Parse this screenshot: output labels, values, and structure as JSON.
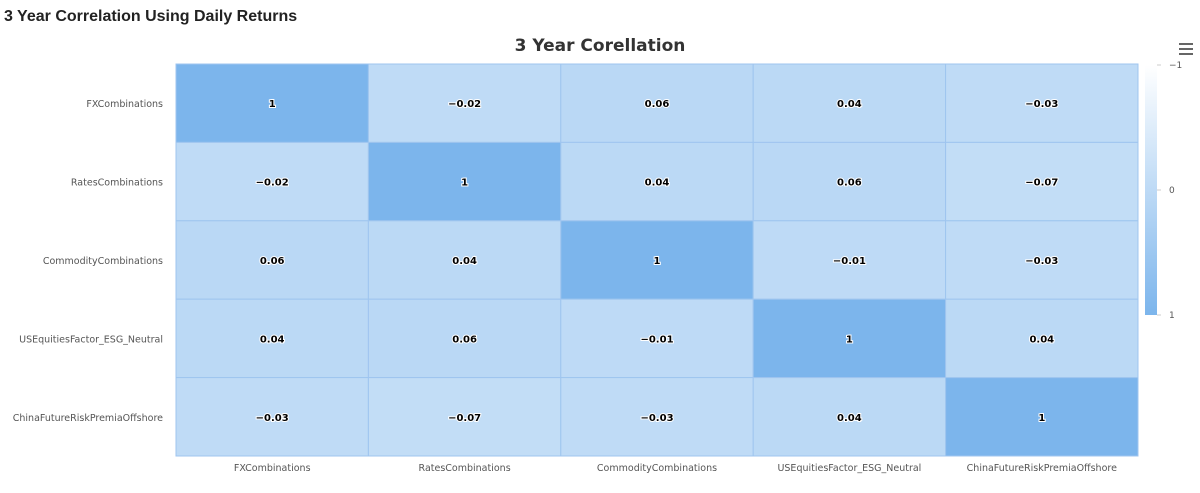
{
  "page": {
    "heading": "3 Year Correlation Using Daily Returns",
    "menu_icon": "hamburger-menu-icon"
  },
  "colors": {
    "low": "#ffffff",
    "high": "#7cb5ec",
    "grid": "#9fc5ef"
  },
  "chart_data": {
    "type": "heatmap",
    "title": "3 Year Corellation",
    "x_categories": [
      "FXCombinations",
      "RatesCombinations",
      "CommodityCombinations",
      "USEquitiesFactor_ESG_Neutral",
      "ChinaFutureRiskPremiaOffshore"
    ],
    "y_categories": [
      "FXCombinations",
      "RatesCombinations",
      "CommodityCombinations",
      "USEquitiesFactor_ESG_Neutral",
      "ChinaFutureRiskPremiaOffshore"
    ],
    "values": [
      [
        1,
        -0.02,
        0.06,
        0.04,
        -0.03
      ],
      [
        -0.02,
        1,
        0.04,
        0.06,
        -0.07
      ],
      [
        0.06,
        0.04,
        1,
        -0.01,
        -0.03
      ],
      [
        0.04,
        0.06,
        -0.01,
        1,
        0.04
      ],
      [
        -0.03,
        -0.07,
        -0.03,
        0.04,
        1
      ]
    ],
    "labels": [
      [
        "1",
        "−0.02",
        "0.06",
        "0.04",
        "−0.03"
      ],
      [
        "−0.02",
        "1",
        "0.04",
        "0.06",
        "−0.07"
      ],
      [
        "0.06",
        "0.04",
        "1",
        "−0.01",
        "−0.03"
      ],
      [
        "0.04",
        "0.06",
        "−0.01",
        "1",
        "0.04"
      ],
      [
        "−0.03",
        "−0.07",
        "−0.03",
        "0.04",
        "1"
      ]
    ],
    "color_axis": {
      "min": -1,
      "max": 1,
      "ticks": [
        -1,
        0,
        1
      ],
      "tick_labels": [
        "−1",
        "0",
        "1"
      ],
      "placement": "right"
    }
  }
}
